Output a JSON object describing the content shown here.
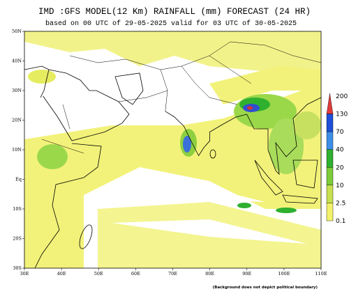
{
  "header": {
    "title": "IMD :GFS MODEL(12 Km) RAINFALL (mm) FORECAST (24 HR)",
    "subtitle": "based on 00 UTC of 29-05-2025 valid for 03 UTC of 30-05-2025"
  },
  "map": {
    "lat_labels": [
      "50N",
      "40N",
      "30N",
      "20N",
      "10N",
      "Eq",
      "10S",
      "20S",
      "30S"
    ],
    "lon_labels": [
      "30E",
      "40E",
      "50E",
      "60E",
      "70E",
      "80E",
      "90E",
      "100E",
      "110E"
    ]
  },
  "legend": {
    "labels": [
      200,
      130,
      70,
      40,
      20,
      10,
      2.5,
      0.1
    ]
  },
  "footer": {
    "note": "(Background does not depict political boundary)"
  }
}
